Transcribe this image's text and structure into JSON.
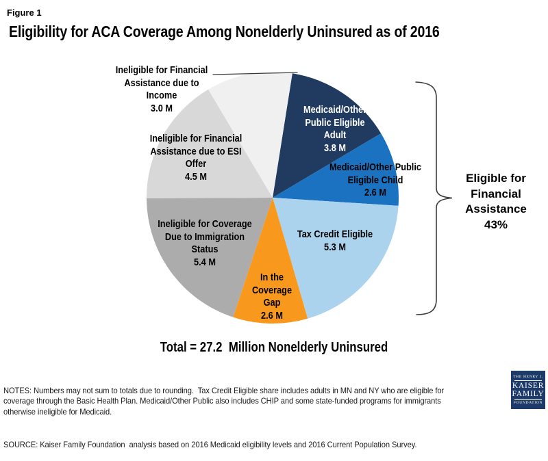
{
  "figure_label": "Figure 1",
  "title": "Eligibility for ACA Coverage Among Nonelderly Uninsured as of 2016",
  "chart_data": {
    "type": "pie",
    "title": "Eligibility for ACA Coverage Among Nonelderly Uninsured as of 2016",
    "units": "millions of nonelderly uninsured people",
    "total_millions": 27.2,
    "total_label": "Total = 27.2  Million Nonelderly Uninsured",
    "start_angle_deg": 9,
    "direction": "clockwise",
    "slices": [
      {
        "name": "Medicaid/Other Public Eligible Adult",
        "value_millions": 3.8,
        "label": "Medicaid/Other\nPublic Eligible\nAdult\n3.8 M",
        "color": "#203A60",
        "label_color": "#FFFFFF"
      },
      {
        "name": "Medicaid/Other Public Eligible Child",
        "value_millions": 2.6,
        "label": "Medicaid/Other Public\nEligible Child\n2.6 M",
        "color": "#1B72C1",
        "label_color": "#000000"
      },
      {
        "name": "Tax Credit Eligible",
        "value_millions": 5.3,
        "label": "Tax Credit Eligible\n5.3 M",
        "color": "#ABD3EE",
        "label_color": "#000000"
      },
      {
        "name": "In the Coverage Gap",
        "value_millions": 2.6,
        "label": "In the\nCoverage\nGap\n2.6 M",
        "color": "#F8991D",
        "label_color": "#000000"
      },
      {
        "name": "Ineligible for Coverage Due to Immigration Status",
        "value_millions": 5.4,
        "label": "Ineligible for Coverage\nDue to Immigration\nStatus\n5.4 M",
        "color": "#ACACAC",
        "label_color": "#000000"
      },
      {
        "name": "Ineligible for Financial Assistance due to ESI Offer",
        "value_millions": 4.5,
        "label": "Ineligible for Financial\nAssistance due to ESI\nOffer\n4.5 M",
        "color": "#D8D8D8",
        "label_color": "#000000"
      },
      {
        "name": "Ineligible for Financial Assistance due to Income",
        "value_millions": 3.0,
        "label": "Ineligible for Financial\nAssistance due to\nIncome\n3.0 M",
        "color": "#F0F0F0",
        "label_color": "#000000"
      }
    ],
    "annotation": {
      "label": "Eligible for\nFinancial\nAssistance\n43%",
      "share_pct": 43
    }
  },
  "footer": {
    "notes": "NOTES: Numbers may not sum to totals due to rounding.  Tax Credit Eligible share includes adults in MN and NY who are eligible for\ncoverage through the Basic Health Plan. Medicaid/Other Public also includes CHIP and some state-funded programs for immigrants\notherwise ineligible for Medicaid.",
    "source": "SOURCE: Kaiser Family Foundation  analysis based on 2016 Medicaid eligibility levels and 2016 Current Population Survey."
  },
  "logo": {
    "line1": "THE HENRY J.",
    "line2": "KAISER",
    "line3": "FAMILY",
    "line4": "FOUNDATION",
    "bg_color": "#1E3A68"
  }
}
